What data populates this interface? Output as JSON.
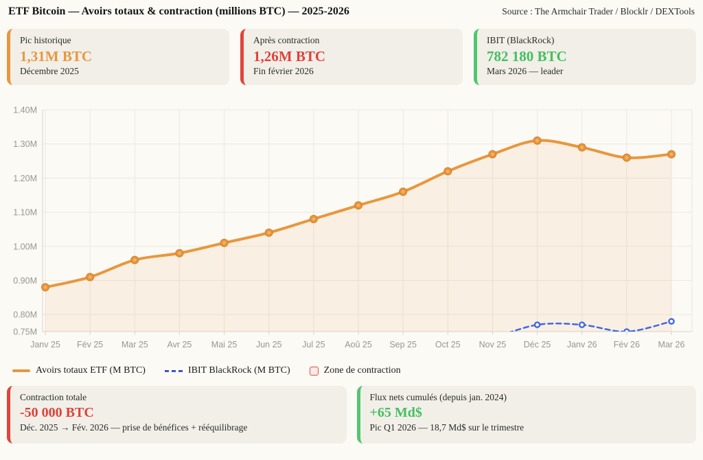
{
  "header": {
    "title": "ETF Bitcoin — Avoirs totaux & contraction (millions BTC) — 2025-2026",
    "source": "Source : The Armchair Trader / Blocklr / DEXTools"
  },
  "stat_cards": [
    {
      "label": "Pic historique",
      "value": "1,31M BTC",
      "sub": "Décembre 2025",
      "accent": "#e8973d",
      "value_color": "#e8973d"
    },
    {
      "label": "Après contraction",
      "value": "1,26M BTC",
      "sub": "Fin février 2026",
      "accent": "#e0453c",
      "value_color": "#e0413a"
    },
    {
      "label": "IBIT (BlackRock)",
      "value": "782 180 BTC",
      "sub": "Mars 2026 — leader",
      "accent": "#52c571",
      "value_color": "#44bf60"
    }
  ],
  "chart_data": {
    "type": "line",
    "x": [
      "Janv 25",
      "Fév 25",
      "Mar 25",
      "Avr 25",
      "Mai 25",
      "Jun 25",
      "Jul 25",
      "Aoû 25",
      "Sep 25",
      "Oct 25",
      "Nov 25",
      "Déc 25",
      "Janv 26",
      "Fév 26",
      "Mar 26"
    ],
    "series": [
      {
        "name": "Avoirs totaux ETF (M BTC)",
        "color": "#e8973d",
        "style": "solid",
        "fill": true,
        "fill_opacity": 0.1,
        "values": [
          0.88,
          0.91,
          0.96,
          0.98,
          1.01,
          1.04,
          1.08,
          1.12,
          1.16,
          1.22,
          1.27,
          1.31,
          1.29,
          1.26,
          1.27
        ]
      },
      {
        "name": "IBIT BlackRock (M BTC)",
        "color": "#4169e1",
        "style": "dashed",
        "fill": false,
        "values": [
          null,
          null,
          null,
          null,
          null,
          null,
          null,
          null,
          null,
          null,
          0.73,
          0.77,
          0.77,
          0.75,
          0.78
        ],
        "note": "ligne visible à partir de fin nov. 2025 ; démarre sous le minimum de l'axe (0,75M)"
      }
    ],
    "ylim": [
      0.75,
      1.4
    ],
    "yticks": [
      1.4,
      1.3,
      1.2,
      1.1,
      1.0,
      0.9,
      0.8,
      0.75
    ],
    "ytick_labels": [
      "1.40M",
      "1.30M",
      "1.20M",
      "1.10M",
      "1.00M",
      "0.90M",
      "0.80M",
      "0.75M"
    ],
    "xlabel": "",
    "ylabel": "",
    "grid": true,
    "legend_position": "bottom-left",
    "tick_color": "#9a968e",
    "grid_color": "#ebe8e0",
    "axis_color": "#d8d4cb"
  },
  "legend": [
    {
      "label": "Avoirs totaux ETF (M BTC)",
      "swatch": "line",
      "color": "#e8973d"
    },
    {
      "label": "IBIT BlackRock (M BTC)",
      "swatch": "dashed-line",
      "color": "#3c56c8"
    },
    {
      "label": "Zone de contraction",
      "swatch": "box",
      "color": "#e74c3c"
    }
  ],
  "bottom_cards": [
    {
      "label": "Contraction totale",
      "value": "-50 000 BTC",
      "sub": "Déc. 2025 → Fév. 2026 — prise de bénéfices + rééquilibrage",
      "accent": "#e0453c",
      "value_color": "#e0413a"
    },
    {
      "label": "Flux nets cumulés (depuis jan. 2024)",
      "value": "+65 Md$",
      "sub": "Pic Q1 2026 — 18,7 Md$ sur le trimestre",
      "accent": "#52c571",
      "value_color": "#44bf60"
    }
  ]
}
